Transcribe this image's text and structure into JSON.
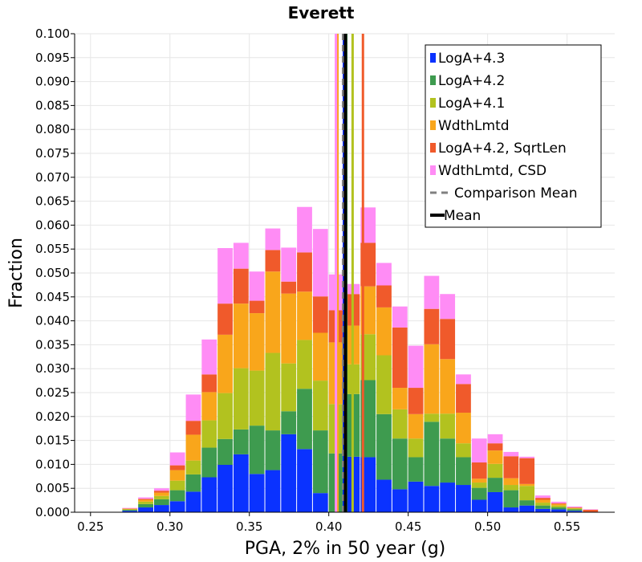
{
  "chart_data": {
    "type": "bar",
    "stacked": true,
    "title": "Everett",
    "xlabel": "PGA, 2% in 50 year (g)",
    "ylabel": "Fraction",
    "xlim": [
      0.24,
      0.58
    ],
    "ylim": [
      0,
      0.1
    ],
    "xticks": [
      "0.25",
      "0.30",
      "0.35",
      "0.40",
      "0.45",
      "0.50",
      "0.55"
    ],
    "yticks": [
      "0.000",
      "0.005",
      "0.010",
      "0.015",
      "0.020",
      "0.025",
      "0.030",
      "0.035",
      "0.040",
      "0.045",
      "0.050",
      "0.055",
      "0.060",
      "0.065",
      "0.070",
      "0.075",
      "0.080",
      "0.085",
      "0.090",
      "0.095",
      "0.100"
    ],
    "grid": true,
    "legend_position": "top-right",
    "bin_width": 0.01,
    "bins": [
      0.265,
      0.275,
      0.285,
      0.295,
      0.305,
      0.315,
      0.325,
      0.335,
      0.345,
      0.355,
      0.365,
      0.375,
      0.385,
      0.395,
      0.405,
      0.415,
      0.425,
      0.435,
      0.445,
      0.455,
      0.465,
      0.475,
      0.485,
      0.495,
      0.505,
      0.515,
      0.525,
      0.535,
      0.545,
      0.555,
      0.565
    ],
    "series": [
      {
        "name": "LogA+4.3",
        "color": "#0a32ff",
        "values": [
          0.0,
          0.0003,
          0.001,
          0.0015,
          0.0023,
          0.0043,
          0.0073,
          0.0099,
          0.0121,
          0.008,
          0.0088,
          0.0163,
          0.0132,
          0.004,
          0.0,
          0.0116,
          0.0115,
          0.0068,
          0.0048,
          0.0064,
          0.0055,
          0.0062,
          0.0057,
          0.0026,
          0.0042,
          0.001,
          0.0014,
          0.0007,
          0.0006,
          0.0003,
          0.0
        ]
      },
      {
        "name": "LogA+4.2",
        "color": "#3e9b4f",
        "values": [
          0.0,
          0.0002,
          0.0007,
          0.0012,
          0.0023,
          0.0036,
          0.0062,
          0.0054,
          0.0052,
          0.0101,
          0.0083,
          0.0048,
          0.0126,
          0.0131,
          0.0123,
          0.0131,
          0.0161,
          0.0137,
          0.0106,
          0.0051,
          0.0134,
          0.0092,
          0.0058,
          0.0025,
          0.003,
          0.0036,
          0.0011,
          0.0007,
          0.0004,
          0.0003,
          0.0
        ]
      },
      {
        "name": "LogA+4.1",
        "color": "#b2c21f",
        "values": [
          0.0,
          0.0001,
          0.0005,
          0.0007,
          0.002,
          0.0029,
          0.0057,
          0.0096,
          0.0128,
          0.0115,
          0.0162,
          0.01,
          0.0102,
          0.0104,
          0.0103,
          0.0062,
          0.0096,
          0.0123,
          0.0061,
          0.0039,
          0.0017,
          0.0052,
          0.0029,
          0.0011,
          0.0029,
          0.0011,
          0.003,
          0.0006,
          0.0004,
          0.0002,
          0.0
        ]
      },
      {
        "name": "WdthLmtd",
        "color": "#f9a61b",
        "values": [
          0.0,
          0.0001,
          0.0004,
          0.0007,
          0.0022,
          0.0054,
          0.0059,
          0.0122,
          0.0135,
          0.012,
          0.017,
          0.0146,
          0.0101,
          0.01,
          0.0129,
          0.0081,
          0.01,
          0.01,
          0.0045,
          0.0051,
          0.0145,
          0.0114,
          0.0064,
          0.0008,
          0.0028,
          0.0014,
          0.0004,
          0.0006,
          0.0003,
          0.0001,
          0.0
        ]
      },
      {
        "name": "LogA+4.2, SqrtLen",
        "color": "#f05a2b",
        "values": [
          0.0,
          0.0001,
          0.0002,
          0.0004,
          0.001,
          0.0029,
          0.0037,
          0.0065,
          0.0073,
          0.0026,
          0.0045,
          0.0025,
          0.0082,
          0.0076,
          0.0067,
          0.0066,
          0.0091,
          0.0046,
          0.0126,
          0.0055,
          0.0074,
          0.0084,
          0.006,
          0.0034,
          0.0015,
          0.0046,
          0.0054,
          0.0004,
          0.0002,
          0.0001,
          0.0005
        ]
      },
      {
        "name": "WdthLmtd, CSD",
        "color": "#ff8cf5",
        "values": [
          0.0,
          0.0001,
          0.0003,
          0.0005,
          0.0027,
          0.0055,
          0.0073,
          0.0116,
          0.0054,
          0.0061,
          0.0045,
          0.0071,
          0.0095,
          0.0141,
          0.0075,
          0.0021,
          0.0074,
          0.0047,
          0.0044,
          0.0088,
          0.0069,
          0.0052,
          0.002,
          0.005,
          0.0019,
          0.0009,
          0.0003,
          0.0005,
          0.0003,
          0.0002,
          0.0001
        ]
      }
    ],
    "mean_lines": [
      {
        "name": "LogA+4.3",
        "color": "#0a32ff",
        "x": 0.4095,
        "style": "solid"
      },
      {
        "name": "LogA+4.2",
        "color": "#3e9b4f",
        "x": 0.411,
        "style": "solid"
      },
      {
        "name": "LogA+4.1",
        "color": "#b2c21f",
        "x": 0.415,
        "style": "solid"
      },
      {
        "name": "WdthLmtd",
        "color": "#f9a61b",
        "x": 0.4055,
        "style": "solid"
      },
      {
        "name": "LogA+4.2, SqrtLen",
        "color": "#f05a2b",
        "x": 0.4215,
        "style": "solid"
      },
      {
        "name": "WdthLmtd, CSD",
        "color": "#ff8cf5",
        "x": 0.4045,
        "style": "solid"
      },
      {
        "name": "Comparison Mean",
        "color": "#808080",
        "x": 0.409,
        "style": "dashed"
      },
      {
        "name": "Mean",
        "color": "#000000",
        "x": 0.4105,
        "style": "solid"
      }
    ],
    "legend": [
      {
        "label": "LogA+4.3",
        "color": "#0a32ff",
        "kind": "box"
      },
      {
        "label": "LogA+4.2",
        "color": "#3e9b4f",
        "kind": "box"
      },
      {
        "label": "LogA+4.1",
        "color": "#b2c21f",
        "kind": "box"
      },
      {
        "label": "WdthLmtd",
        "color": "#f9a61b",
        "kind": "box"
      },
      {
        "label": "LogA+4.2, SqrtLen",
        "color": "#f05a2b",
        "kind": "box"
      },
      {
        "label": "WdthLmtd, CSD",
        "color": "#ff8cf5",
        "kind": "box"
      },
      {
        "label": "Comparison Mean",
        "color": "#808080",
        "kind": "dashed"
      },
      {
        "label": "Mean",
        "color": "#000000",
        "kind": "solid"
      }
    ]
  }
}
